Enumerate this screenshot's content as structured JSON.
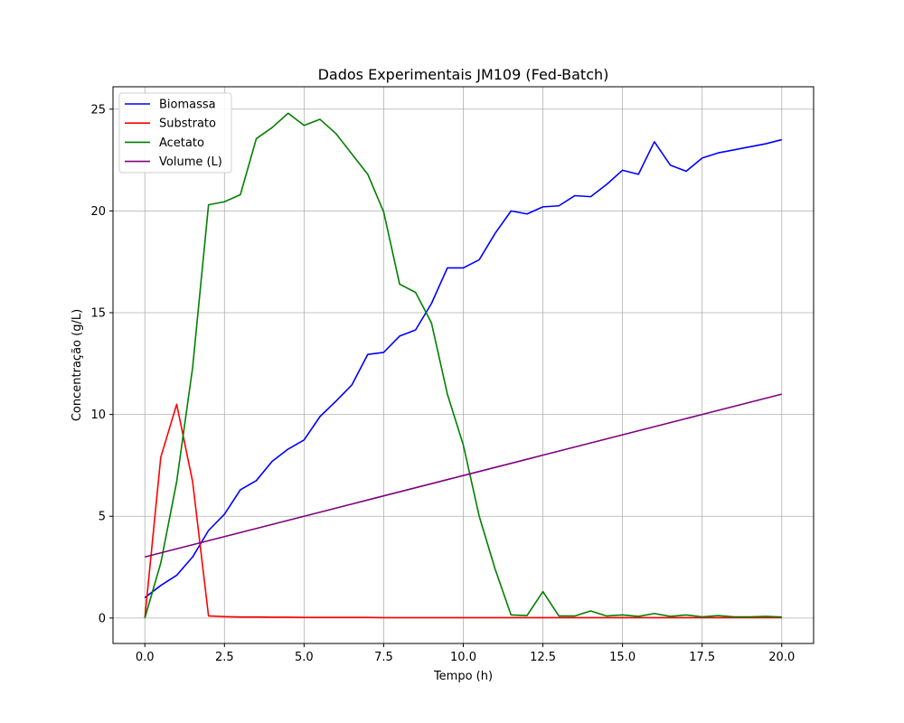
{
  "chart_data": {
    "type": "line",
    "title": "Dados Experimentais JM109 (Fed-Batch)",
    "xlabel": "Tempo (h)",
    "ylabel": "Concentração (g/L)",
    "xlim": [
      -1,
      21
    ],
    "ylim": [
      -1.25,
      26.1
    ],
    "xticks": [
      0,
      2.5,
      5,
      7.5,
      10,
      12.5,
      15,
      17.5,
      20
    ],
    "xtick_labels": [
      "0.0",
      "2.5",
      "5.0",
      "7.5",
      "10.0",
      "12.5",
      "15.0",
      "17.5",
      "20.0"
    ],
    "yticks": [
      0,
      5,
      10,
      15,
      20,
      25
    ],
    "ytick_labels": [
      "0",
      "5",
      "10",
      "15",
      "20",
      "25"
    ],
    "grid": true,
    "legend_position": "upper-left",
    "x": [
      0,
      0.5,
      1,
      1.5,
      2,
      2.5,
      3,
      3.5,
      4,
      4.5,
      5,
      5.5,
      6,
      6.5,
      7,
      7.5,
      8,
      8.5,
      9,
      9.5,
      10,
      10.5,
      11,
      11.5,
      12,
      12.5,
      13,
      13.5,
      14,
      14.5,
      15,
      15.5,
      16,
      16.5,
      17,
      17.5,
      18,
      18.5,
      19,
      19.5,
      20
    ],
    "series": [
      {
        "name": "Biomassa",
        "color": "#0000ff",
        "values": [
          1.0,
          1.6,
          2.1,
          3.0,
          4.3,
          5.1,
          6.3,
          6.75,
          7.7,
          8.3,
          8.75,
          9.9,
          10.65,
          11.45,
          12.95,
          13.05,
          13.85,
          14.15,
          15.45,
          17.2,
          17.2,
          17.6,
          18.9,
          20.0,
          19.85,
          20.2,
          20.25,
          20.75,
          20.7,
          21.3,
          22.0,
          21.8,
          23.4,
          22.25,
          21.95,
          22.6,
          22.85,
          23.0,
          23.15,
          23.3,
          23.5
        ]
      },
      {
        "name": "Substrato",
        "color": "#ff0000",
        "values": [
          0.0,
          7.9,
          10.5,
          6.7,
          0.1,
          0.07,
          0.05,
          0.05,
          0.04,
          0.04,
          0.03,
          0.03,
          0.03,
          0.03,
          0.03,
          0.02,
          0.02,
          0.02,
          0.02,
          0.02,
          0.02,
          0.02,
          0.02,
          0.02,
          0.02,
          0.02,
          0.02,
          0.02,
          0.02,
          0.02,
          0.02,
          0.02,
          0.02,
          0.02,
          0.02,
          0.02,
          0.02,
          0.02,
          0.02,
          0.02,
          0.02
        ]
      },
      {
        "name": "Acetato",
        "color": "#008000",
        "values": [
          0.0,
          2.7,
          6.7,
          12.3,
          20.3,
          20.45,
          20.8,
          23.55,
          24.1,
          24.8,
          24.2,
          24.5,
          23.8,
          22.8,
          21.8,
          19.95,
          16.4,
          16.0,
          14.5,
          11.0,
          8.5,
          5.0,
          2.4,
          0.15,
          0.12,
          1.3,
          0.1,
          0.1,
          0.35,
          0.1,
          0.15,
          0.08,
          0.22,
          0.08,
          0.15,
          0.06,
          0.12,
          0.06,
          0.06,
          0.08,
          0.05
        ]
      },
      {
        "name": "Volume (L)",
        "color": "#800080",
        "values": [
          3.0,
          3.2,
          3.4,
          3.6,
          3.8,
          4.0,
          4.2,
          4.4,
          4.6,
          4.8,
          5.0,
          5.2,
          5.4,
          5.6,
          5.8,
          6.0,
          6.2,
          6.4,
          6.6,
          6.8,
          7.0,
          7.2,
          7.4,
          7.6,
          7.8,
          8.0,
          8.2,
          8.4,
          8.6,
          8.8,
          9.0,
          9.2,
          9.4,
          9.6,
          9.8,
          10.0,
          10.2,
          10.4,
          10.6,
          10.8,
          11.0
        ]
      }
    ]
  }
}
